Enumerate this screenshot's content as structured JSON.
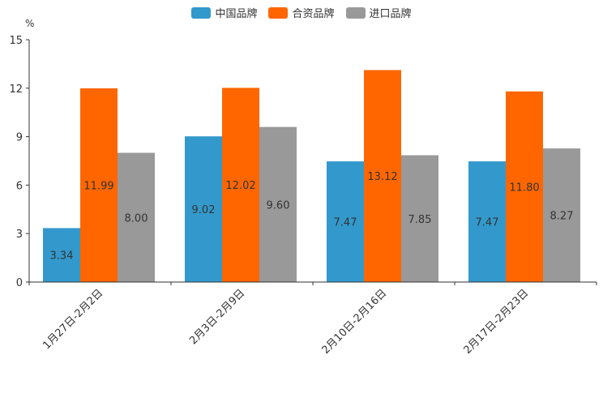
{
  "chart_data": {
    "type": "bar",
    "unit_label": "%",
    "categories": [
      "1月27日-2月2日",
      "2月3日-2月9日",
      "2月10日-2月16日",
      "2月17日-2月23日"
    ],
    "series": [
      {
        "name": "中国品牌",
        "color": "#3399cc",
        "values": [
          3.34,
          9.02,
          7.47,
          7.47
        ],
        "labels": [
          "3.34",
          "9.02",
          "7.47",
          "7.47"
        ]
      },
      {
        "name": "合资品牌",
        "color": "#ff6600",
        "values": [
          11.99,
          12.02,
          13.12,
          11.8
        ],
        "labels": [
          "11.99",
          "12.02",
          "13.12",
          "11.80"
        ]
      },
      {
        "name": "进口品牌",
        "color": "#999999",
        "values": [
          8.0,
          9.6,
          7.85,
          8.27
        ],
        "labels": [
          "8.00",
          "9.60",
          "7.85",
          "8.27"
        ]
      }
    ],
    "yticks": [
      0,
      3,
      6,
      9,
      12,
      15
    ],
    "ylim": [
      0,
      15
    ],
    "legend_position": "top-center"
  }
}
